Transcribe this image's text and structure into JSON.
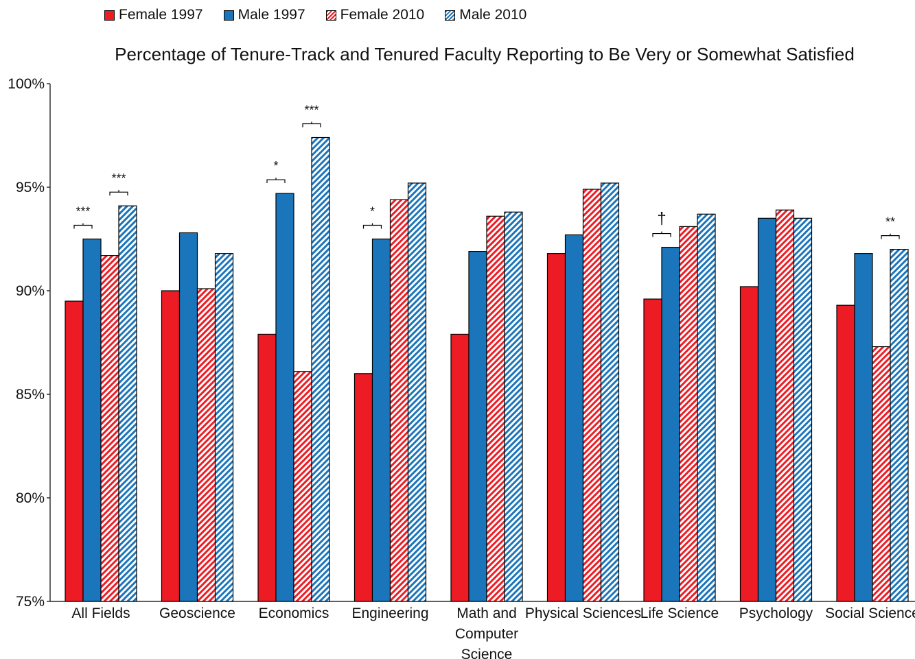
{
  "chart_data": {
    "type": "bar",
    "title": "Percentage of Tenure-Track and Tenured Faculty Reporting to Be Very or Somewhat Satisfied",
    "xlabel": "",
    "ylabel": "",
    "ylim": [
      75,
      100
    ],
    "y_ticks": [
      "75%",
      "80%",
      "85%",
      "90%",
      "95%",
      "100%"
    ],
    "y_tick_values": [
      75,
      80,
      85,
      90,
      95,
      100
    ],
    "grid": false,
    "legend_placement": "top-left",
    "categories": [
      "All Fields",
      "Geoscience",
      "Economics",
      "Engineering",
      "Math and Computer Science",
      "Physical Sciences",
      "Life Science",
      "Psychology",
      "Social Science"
    ],
    "category_label_lines": [
      [
        "All Fields"
      ],
      [
        "Geoscience"
      ],
      [
        "Economics"
      ],
      [
        "Engineering"
      ],
      [
        "Math and",
        "Computer",
        "Science"
      ],
      [
        "Physical Sciences"
      ],
      [
        "Life Science"
      ],
      [
        "Psychology"
      ],
      [
        "Social Science"
      ]
    ],
    "series": [
      {
        "name": "Female 1997",
        "color": "#ed1c24",
        "pattern": "solid",
        "values": [
          89.5,
          90.0,
          87.9,
          86.0,
          87.9,
          91.8,
          89.6,
          90.2,
          89.3
        ]
      },
      {
        "name": "Male 1997",
        "color": "#1b75bb",
        "pattern": "solid",
        "values": [
          92.5,
          92.8,
          94.7,
          92.5,
          91.9,
          92.7,
          92.1,
          93.5,
          91.8
        ]
      },
      {
        "name": "Female 2010",
        "color": "#ed1c24",
        "pattern": "hatched",
        "values": [
          91.7,
          90.1,
          86.1,
          94.4,
          93.6,
          94.9,
          93.1,
          93.9,
          87.3
        ]
      },
      {
        "name": "Male 2010",
        "color": "#1b75bb",
        "pattern": "hatched",
        "values": [
          94.1,
          91.8,
          97.4,
          95.2,
          93.8,
          95.2,
          93.7,
          93.5,
          92.0
        ]
      }
    ],
    "annotations": [
      {
        "category": "All Fields",
        "pair": "1997",
        "label": "***"
      },
      {
        "category": "All Fields",
        "pair": "2010",
        "label": "***"
      },
      {
        "category": "Economics",
        "pair": "1997",
        "label": "*"
      },
      {
        "category": "Economics",
        "pair": "2010",
        "label": "***"
      },
      {
        "category": "Engineering",
        "pair": "1997",
        "label": "*"
      },
      {
        "category": "Life Science",
        "pair": "1997",
        "label": "†"
      },
      {
        "category": "Social Science",
        "pair": "2010",
        "label": "**"
      }
    ]
  }
}
